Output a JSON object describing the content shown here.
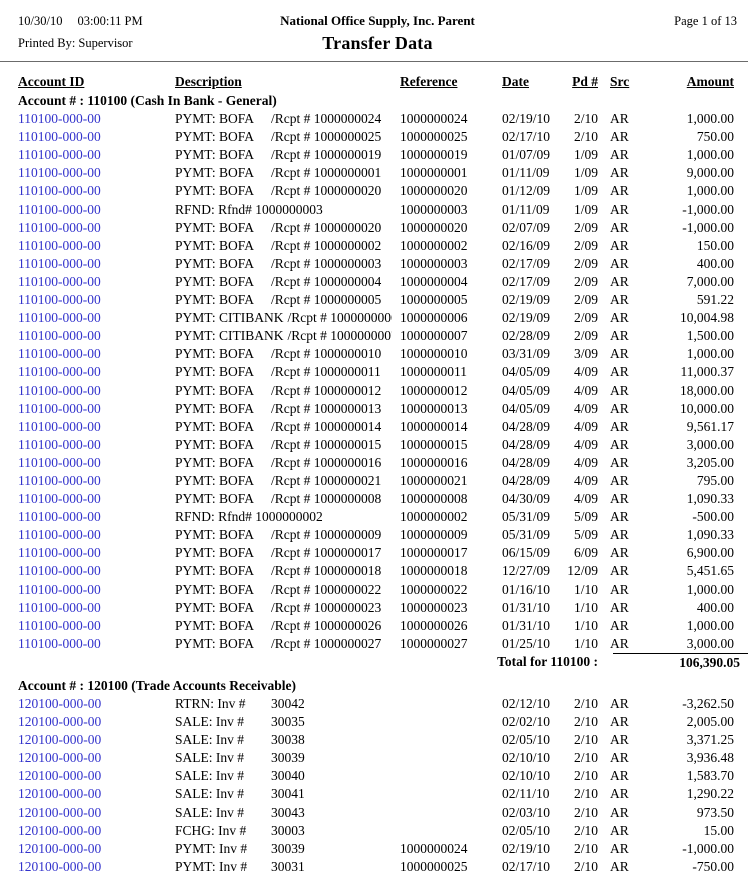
{
  "page": {
    "date": "10/30/10",
    "time": "03:00:11 PM",
    "company": "National Office Supply, Inc. Parent",
    "page_info": "Page 1 of 13",
    "printed_by": "Printed By: Supervisor",
    "report_title": "Transfer Data"
  },
  "colors": {
    "account_link": "#3333cc",
    "rule": "#6b6b6b"
  },
  "table": {
    "columns": [
      "Account ID",
      "Description",
      "Reference",
      "Date",
      "Pd #",
      "Src",
      "Amount"
    ],
    "sections": [
      {
        "header": "Account # : 110100 (Cash In Bank - General)",
        "total_label": "Total for 110100 :",
        "total_amount": "106,390.05",
        "rows": [
          {
            "a": "110100-000-00",
            "d1": "PYMT: BOFA",
            "d2": "/Rcpt # 1000000024",
            "ref": "1000000024",
            "date": "02/19/10",
            "pd": "2/10",
            "src": "AR",
            "amt": "1,000.00"
          },
          {
            "a": "110100-000-00",
            "d1": "PYMT: BOFA",
            "d2": "/Rcpt # 1000000025",
            "ref": "1000000025",
            "date": "02/17/10",
            "pd": "2/10",
            "src": "AR",
            "amt": "750.00"
          },
          {
            "a": "110100-000-00",
            "d1": "PYMT: BOFA",
            "d2": "/Rcpt # 1000000019",
            "ref": "1000000019",
            "date": "01/07/09",
            "pd": "1/09",
            "src": "AR",
            "amt": "1,000.00"
          },
          {
            "a": "110100-000-00",
            "d1": "PYMT: BOFA",
            "d2": "/Rcpt # 1000000001",
            "ref": "1000000001",
            "date": "01/11/09",
            "pd": "1/09",
            "src": "AR",
            "amt": "9,000.00"
          },
          {
            "a": "110100-000-00",
            "d1": "PYMT: BOFA",
            "d2": "/Rcpt # 1000000020",
            "ref": "1000000020",
            "date": "01/12/09",
            "pd": "1/09",
            "src": "AR",
            "amt": "1,000.00"
          },
          {
            "a": "110100-000-00",
            "d1": "RFND: Rfnd# 1000000003",
            "d2": "",
            "ref": "1000000003",
            "date": "01/11/09",
            "pd": "1/09",
            "src": "AR",
            "amt": "-1,000.00"
          },
          {
            "a": "110100-000-00",
            "d1": "PYMT: BOFA",
            "d2": "/Rcpt # 1000000020",
            "ref": "1000000020",
            "date": "02/07/09",
            "pd": "2/09",
            "src": "AR",
            "amt": "-1,000.00"
          },
          {
            "a": "110100-000-00",
            "d1": "PYMT: BOFA",
            "d2": "/Rcpt # 1000000002",
            "ref": "1000000002",
            "date": "02/16/09",
            "pd": "2/09",
            "src": "AR",
            "amt": "150.00"
          },
          {
            "a": "110100-000-00",
            "d1": "PYMT: BOFA",
            "d2": "/Rcpt # 1000000003",
            "ref": "1000000003",
            "date": "02/17/09",
            "pd": "2/09",
            "src": "AR",
            "amt": "400.00"
          },
          {
            "a": "110100-000-00",
            "d1": "PYMT: BOFA",
            "d2": "/Rcpt # 1000000004",
            "ref": "1000000004",
            "date": "02/17/09",
            "pd": "2/09",
            "src": "AR",
            "amt": "7,000.00"
          },
          {
            "a": "110100-000-00",
            "d1": "PYMT: BOFA",
            "d2": "/Rcpt # 1000000005",
            "ref": "1000000005",
            "date": "02/19/09",
            "pd": "2/09",
            "src": "AR",
            "amt": "591.22"
          },
          {
            "a": "110100-000-00",
            "d1": "PYMT: CITIBANK",
            "d2": "/Rcpt # 1000000006",
            "ref": "1000000006",
            "date": "02/19/09",
            "pd": "2/09",
            "src": "AR",
            "amt": "10,004.98"
          },
          {
            "a": "110100-000-00",
            "d1": "PYMT: CITIBANK",
            "d2": "/Rcpt # 1000000007",
            "ref": "1000000007",
            "date": "02/28/09",
            "pd": "2/09",
            "src": "AR",
            "amt": "1,500.00"
          },
          {
            "a": "110100-000-00",
            "d1": "PYMT: BOFA",
            "d2": "/Rcpt # 1000000010",
            "ref": "1000000010",
            "date": "03/31/09",
            "pd": "3/09",
            "src": "AR",
            "amt": "1,000.00"
          },
          {
            "a": "110100-000-00",
            "d1": "PYMT: BOFA",
            "d2": "/Rcpt # 1000000011",
            "ref": "1000000011",
            "date": "04/05/09",
            "pd": "4/09",
            "src": "AR",
            "amt": "11,000.37"
          },
          {
            "a": "110100-000-00",
            "d1": "PYMT: BOFA",
            "d2": "/Rcpt # 1000000012",
            "ref": "1000000012",
            "date": "04/05/09",
            "pd": "4/09",
            "src": "AR",
            "amt": "18,000.00"
          },
          {
            "a": "110100-000-00",
            "d1": "PYMT: BOFA",
            "d2": "/Rcpt # 1000000013",
            "ref": "1000000013",
            "date": "04/05/09",
            "pd": "4/09",
            "src": "AR",
            "amt": "10,000.00"
          },
          {
            "a": "110100-000-00",
            "d1": "PYMT: BOFA",
            "d2": "/Rcpt # 1000000014",
            "ref": "1000000014",
            "date": "04/28/09",
            "pd": "4/09",
            "src": "AR",
            "amt": "9,561.17"
          },
          {
            "a": "110100-000-00",
            "d1": "PYMT: BOFA",
            "d2": "/Rcpt # 1000000015",
            "ref": "1000000015",
            "date": "04/28/09",
            "pd": "4/09",
            "src": "AR",
            "amt": "3,000.00"
          },
          {
            "a": "110100-000-00",
            "d1": "PYMT: BOFA",
            "d2": "/Rcpt # 1000000016",
            "ref": "1000000016",
            "date": "04/28/09",
            "pd": "4/09",
            "src": "AR",
            "amt": "3,205.00"
          },
          {
            "a": "110100-000-00",
            "d1": "PYMT: BOFA",
            "d2": "/Rcpt # 1000000021",
            "ref": "1000000021",
            "date": "04/28/09",
            "pd": "4/09",
            "src": "AR",
            "amt": "795.00"
          },
          {
            "a": "110100-000-00",
            "d1": "PYMT: BOFA",
            "d2": "/Rcpt # 1000000008",
            "ref": "1000000008",
            "date": "04/30/09",
            "pd": "4/09",
            "src": "AR",
            "amt": "1,090.33"
          },
          {
            "a": "110100-000-00",
            "d1": "RFND: Rfnd# 1000000002",
            "d2": "",
            "ref": "1000000002",
            "date": "05/31/09",
            "pd": "5/09",
            "src": "AR",
            "amt": "-500.00"
          },
          {
            "a": "110100-000-00",
            "d1": "PYMT: BOFA",
            "d2": "/Rcpt # 1000000009",
            "ref": "1000000009",
            "date": "05/31/09",
            "pd": "5/09",
            "src": "AR",
            "amt": "1,090.33"
          },
          {
            "a": "110100-000-00",
            "d1": "PYMT: BOFA",
            "d2": "/Rcpt # 1000000017",
            "ref": "1000000017",
            "date": "06/15/09",
            "pd": "6/09",
            "src": "AR",
            "amt": "6,900.00"
          },
          {
            "a": "110100-000-00",
            "d1": "PYMT: BOFA",
            "d2": "/Rcpt # 1000000018",
            "ref": "1000000018",
            "date": "12/27/09",
            "pd": "12/09",
            "src": "AR",
            "amt": "5,451.65"
          },
          {
            "a": "110100-000-00",
            "d1": "PYMT: BOFA",
            "d2": "/Rcpt # 1000000022",
            "ref": "1000000022",
            "date": "01/16/10",
            "pd": "1/10",
            "src": "AR",
            "amt": "1,000.00"
          },
          {
            "a": "110100-000-00",
            "d1": "PYMT: BOFA",
            "d2": "/Rcpt # 1000000023",
            "ref": "1000000023",
            "date": "01/31/10",
            "pd": "1/10",
            "src": "AR",
            "amt": "400.00"
          },
          {
            "a": "110100-000-00",
            "d1": "PYMT: BOFA",
            "d2": "/Rcpt # 1000000026",
            "ref": "1000000026",
            "date": "01/31/10",
            "pd": "1/10",
            "src": "AR",
            "amt": "1,000.00"
          },
          {
            "a": "110100-000-00",
            "d1": "PYMT: BOFA",
            "d2": "/Rcpt # 1000000027",
            "ref": "1000000027",
            "date": "01/25/10",
            "pd": "1/10",
            "src": "AR",
            "amt": "3,000.00"
          }
        ]
      },
      {
        "header": "Account # : 120100 (Trade Accounts Receivable)",
        "total_label": "",
        "total_amount": "",
        "rows": [
          {
            "a": "120100-000-00",
            "d1": "RTRN: Inv #",
            "d2": "30042",
            "ref": "",
            "date": "02/12/10",
            "pd": "2/10",
            "src": "AR",
            "amt": "-3,262.50"
          },
          {
            "a": "120100-000-00",
            "d1": "SALE: Inv #",
            "d2": "30035",
            "ref": "",
            "date": "02/02/10",
            "pd": "2/10",
            "src": "AR",
            "amt": "2,005.00"
          },
          {
            "a": "120100-000-00",
            "d1": "SALE: Inv #",
            "d2": "30038",
            "ref": "",
            "date": "02/05/10",
            "pd": "2/10",
            "src": "AR",
            "amt": "3,371.25"
          },
          {
            "a": "120100-000-00",
            "d1": "SALE: Inv #",
            "d2": "30039",
            "ref": "",
            "date": "02/10/10",
            "pd": "2/10",
            "src": "AR",
            "amt": "3,936.48"
          },
          {
            "a": "120100-000-00",
            "d1": "SALE: Inv #",
            "d2": "30040",
            "ref": "",
            "date": "02/10/10",
            "pd": "2/10",
            "src": "AR",
            "amt": "1,583.70"
          },
          {
            "a": "120100-000-00",
            "d1": "SALE: Inv #",
            "d2": "30041",
            "ref": "",
            "date": "02/11/10",
            "pd": "2/10",
            "src": "AR",
            "amt": "1,290.22"
          },
          {
            "a": "120100-000-00",
            "d1": "SALE: Inv #",
            "d2": "30043",
            "ref": "",
            "date": "02/03/10",
            "pd": "2/10",
            "src": "AR",
            "amt": "973.50"
          },
          {
            "a": "120100-000-00",
            "d1": "FCHG: Inv #",
            "d2": "30003",
            "ref": "",
            "date": "02/05/10",
            "pd": "2/10",
            "src": "AR",
            "amt": "15.00"
          },
          {
            "a": "120100-000-00",
            "d1": "PYMT: Inv #",
            "d2": "30039",
            "ref": "1000000024",
            "date": "02/19/10",
            "pd": "2/10",
            "src": "AR",
            "amt": "-1,000.00"
          },
          {
            "a": "120100-000-00",
            "d1": "PYMT: Inv #",
            "d2": "30031",
            "ref": "1000000025",
            "date": "02/17/10",
            "pd": "2/10",
            "src": "AR",
            "amt": "-750.00"
          }
        ]
      }
    ]
  }
}
